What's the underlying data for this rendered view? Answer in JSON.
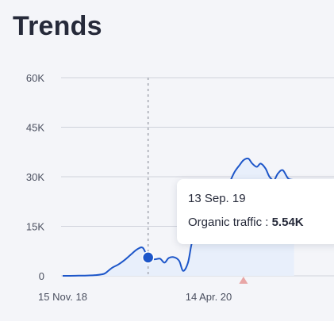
{
  "page": {
    "title": "Trends"
  },
  "colors": {
    "line": "#1d56c9",
    "fill": "#e8effb",
    "grid": "#cfd2db",
    "marker": "#e8a6a6",
    "hover_line": "#a4a7b0"
  },
  "tooltip": {
    "date": "13 Sep. 19",
    "metric_label": "Organic traffic : ",
    "metric_value": "5.54K"
  },
  "chart_data": {
    "type": "area",
    "title": "Trends",
    "xlabel": "",
    "ylabel": "",
    "ylim": [
      0,
      60000
    ],
    "yticks": [
      0,
      15000,
      30000,
      45000,
      60000
    ],
    "ytick_labels": [
      "0",
      "15K",
      "30K",
      "45K",
      "60K"
    ],
    "xtick_labels": [
      {
        "label": "15 Nov. 18",
        "date": "2018-11-15"
      },
      {
        "label": "14 Apr. 20",
        "date": "2020-04-14"
      }
    ],
    "grid": true,
    "hover": {
      "date": "2019-09-13",
      "value": 5540
    },
    "annotation_marker_date": "2020-08-15",
    "series": [
      {
        "x": [
          "2018-11-15",
          "2018-12-10",
          "2019-01-10",
          "2019-02-10",
          "2019-03-10",
          "2019-04-10",
          "2019-04-25",
          "2019-05-10",
          "2019-06-01",
          "2019-06-25",
          "2019-07-15",
          "2019-08-05",
          "2019-08-25",
          "2019-09-13",
          "2019-10-05",
          "2019-10-25",
          "2019-11-10",
          "2019-11-25",
          "2019-12-15",
          "2020-01-01",
          "2020-01-15",
          "2020-02-01",
          "2020-02-15",
          "2020-03-01",
          "2020-03-15",
          "2020-04-01",
          "2020-04-14",
          "2020-05-01",
          "2020-05-15",
          "2020-06-01",
          "2020-06-15",
          "2020-07-01",
          "2020-07-15",
          "2020-08-01",
          "2020-08-15",
          "2020-09-01",
          "2020-09-15",
          "2020-10-01",
          "2020-10-15",
          "2020-11-01",
          "2020-11-15",
          "2020-12-01",
          "2020-12-15",
          "2021-01-01",
          "2021-01-20",
          "2021-02-10"
        ],
        "y": [
          0,
          0,
          50,
          100,
          200,
          600,
          1500,
          2500,
          3500,
          5000,
          6500,
          8000,
          8500,
          5540,
          5000,
          5200,
          4000,
          5400,
          5600,
          4500,
          1500,
          4000,
          10000,
          11000,
          16000,
          21000,
          23000,
          22000,
          24500,
          23000,
          26000,
          29000,
          31500,
          33500,
          35000,
          35500,
          34000,
          33000,
          34000,
          32500,
          30000,
          29000,
          31000,
          32000,
          29500,
          29000
        ]
      }
    ]
  }
}
